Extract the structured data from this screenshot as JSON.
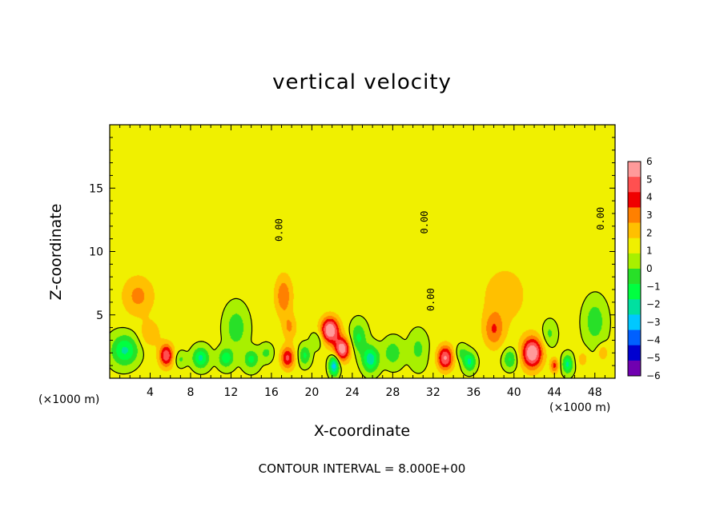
{
  "chart_data": {
    "type": "heatmap",
    "title": "vertical velocity",
    "xlabel": "X-coordinate",
    "ylabel": "Z-coordinate",
    "x_unit": "(×1000 m)",
    "x_unit_right": "(×1000 m)",
    "xlim": [
      0,
      50
    ],
    "ylim": [
      0,
      20
    ],
    "x_ticks": [
      4,
      8,
      12,
      16,
      20,
      24,
      28,
      32,
      36,
      40,
      44,
      48
    ],
    "y_ticks": [
      5,
      10,
      15
    ],
    "contour_note": "CONTOUR INTERVAL = 8.000E+00",
    "contour_label": "0.00",
    "colorbar": {
      "levels": [
        6,
        5,
        4,
        3,
        2,
        1,
        0,
        -1,
        -2,
        -3,
        -4,
        -5,
        -6
      ],
      "colors": [
        "#ff9a9a",
        "#ff5050",
        "#f00000",
        "#ff8000",
        "#ffc000",
        "#f0f000",
        "#a8f000",
        "#28e028",
        "#00ff40",
        "#00e0a0",
        "#00c8ff",
        "#0060ff",
        "#0000d0",
        "#7000b0"
      ]
    },
    "blobs": [
      {
        "x": 1.5,
        "z": 2.2,
        "v": -3.5,
        "rx": 1.3,
        "rz": 1.2
      },
      {
        "x": 2.8,
        "z": 6.5,
        "v": 2.0,
        "rx": 1.6,
        "rz": 1.6
      },
      {
        "x": 4.0,
        "z": 3.5,
        "v": 1.5,
        "rx": 1.0,
        "rz": 1.0
      },
      {
        "x": 5.6,
        "z": 1.8,
        "v": 4.5,
        "rx": 0.7,
        "rz": 0.9
      },
      {
        "x": 7.0,
        "z": 1.5,
        "v": -1.5,
        "rx": 0.6,
        "rz": 0.6
      },
      {
        "x": 9.0,
        "z": 1.6,
        "v": -3.5,
        "rx": 0.8,
        "rz": 0.8
      },
      {
        "x": 11.5,
        "z": 1.6,
        "v": -3.0,
        "rx": 0.7,
        "rz": 0.7
      },
      {
        "x": 12.5,
        "z": 4.0,
        "v": -2.0,
        "rx": 1.0,
        "rz": 1.5
      },
      {
        "x": 14.0,
        "z": 1.5,
        "v": -2.5,
        "rx": 0.7,
        "rz": 0.7
      },
      {
        "x": 15.5,
        "z": 2.0,
        "v": -1.5,
        "rx": 0.6,
        "rz": 0.6
      },
      {
        "x": 17.2,
        "z": 6.5,
        "v": 2.5,
        "rx": 0.9,
        "rz": 1.7
      },
      {
        "x": 17.8,
        "z": 4.0,
        "v": 1.8,
        "rx": 0.7,
        "rz": 1.0
      },
      {
        "x": 17.6,
        "z": 1.6,
        "v": 4.0,
        "rx": 0.7,
        "rz": 0.9
      },
      {
        "x": 19.3,
        "z": 1.8,
        "v": -2.5,
        "rx": 0.6,
        "rz": 0.8
      },
      {
        "x": 20.5,
        "z": 3.0,
        "v": -1.5,
        "rx": 0.6,
        "rz": 0.7
      },
      {
        "x": 21.8,
        "z": 3.8,
        "v": 6.0,
        "rx": 0.9,
        "rz": 1.0
      },
      {
        "x": 23.0,
        "z": 2.3,
        "v": 5.5,
        "rx": 0.8,
        "rz": 0.9
      },
      {
        "x": 22.2,
        "z": 1.0,
        "v": -5.0,
        "rx": 0.5,
        "rz": 0.8
      },
      {
        "x": 24.6,
        "z": 3.2,
        "v": -2.5,
        "rx": 0.8,
        "rz": 1.2
      },
      {
        "x": 25.8,
        "z": 1.5,
        "v": -4.0,
        "rx": 0.8,
        "rz": 1.0
      },
      {
        "x": 28.0,
        "z": 2.0,
        "v": -2.0,
        "rx": 0.9,
        "rz": 1.0
      },
      {
        "x": 30.5,
        "z": 2.3,
        "v": -1.5,
        "rx": 0.8,
        "rz": 1.2
      },
      {
        "x": 33.2,
        "z": 1.6,
        "v": 5.0,
        "rx": 0.8,
        "rz": 1.0
      },
      {
        "x": 34.8,
        "z": 2.0,
        "v": -1.5,
        "rx": 0.6,
        "rz": 0.6
      },
      {
        "x": 35.6,
        "z": 1.3,
        "v": -3.5,
        "rx": 0.6,
        "rz": 0.7
      },
      {
        "x": 38.0,
        "z": 3.8,
        "v": 2.5,
        "rx": 1.0,
        "rz": 1.4
      },
      {
        "x": 39.0,
        "z": 6.5,
        "v": 1.2,
        "rx": 2.5,
        "rz": 2.5
      },
      {
        "x": 39.6,
        "z": 1.5,
        "v": -2.5,
        "rx": 0.7,
        "rz": 0.8
      },
      {
        "x": 41.8,
        "z": 2.0,
        "v": 6.0,
        "rx": 1.0,
        "rz": 1.2
      },
      {
        "x": 43.5,
        "z": 3.5,
        "v": -1.5,
        "rx": 0.7,
        "rz": 1.0
      },
      {
        "x": 44.0,
        "z": 1.0,
        "v": 3.0,
        "rx": 0.4,
        "rz": 0.6
      },
      {
        "x": 45.3,
        "z": 1.1,
        "v": -3.5,
        "rx": 0.5,
        "rz": 0.7
      },
      {
        "x": 46.8,
        "z": 1.5,
        "v": 1.5,
        "rx": 0.5,
        "rz": 0.6
      },
      {
        "x": 48.0,
        "z": 4.5,
        "v": -2.0,
        "rx": 1.0,
        "rz": 1.6
      },
      {
        "x": 48.8,
        "z": 2.0,
        "v": 1.8,
        "rx": 0.5,
        "rz": 0.6
      },
      {
        "x": 44.0,
        "z": 12.0,
        "v": 0.3,
        "rx": 6.0,
        "rz": 4.0
      },
      {
        "x": 30.0,
        "z": 14.0,
        "v": 0.2,
        "rx": 3.0,
        "rz": 3.0
      },
      {
        "x": 8.0,
        "z": 10.0,
        "v": -0.2,
        "rx": 3.0,
        "rz": 3.0
      }
    ]
  }
}
